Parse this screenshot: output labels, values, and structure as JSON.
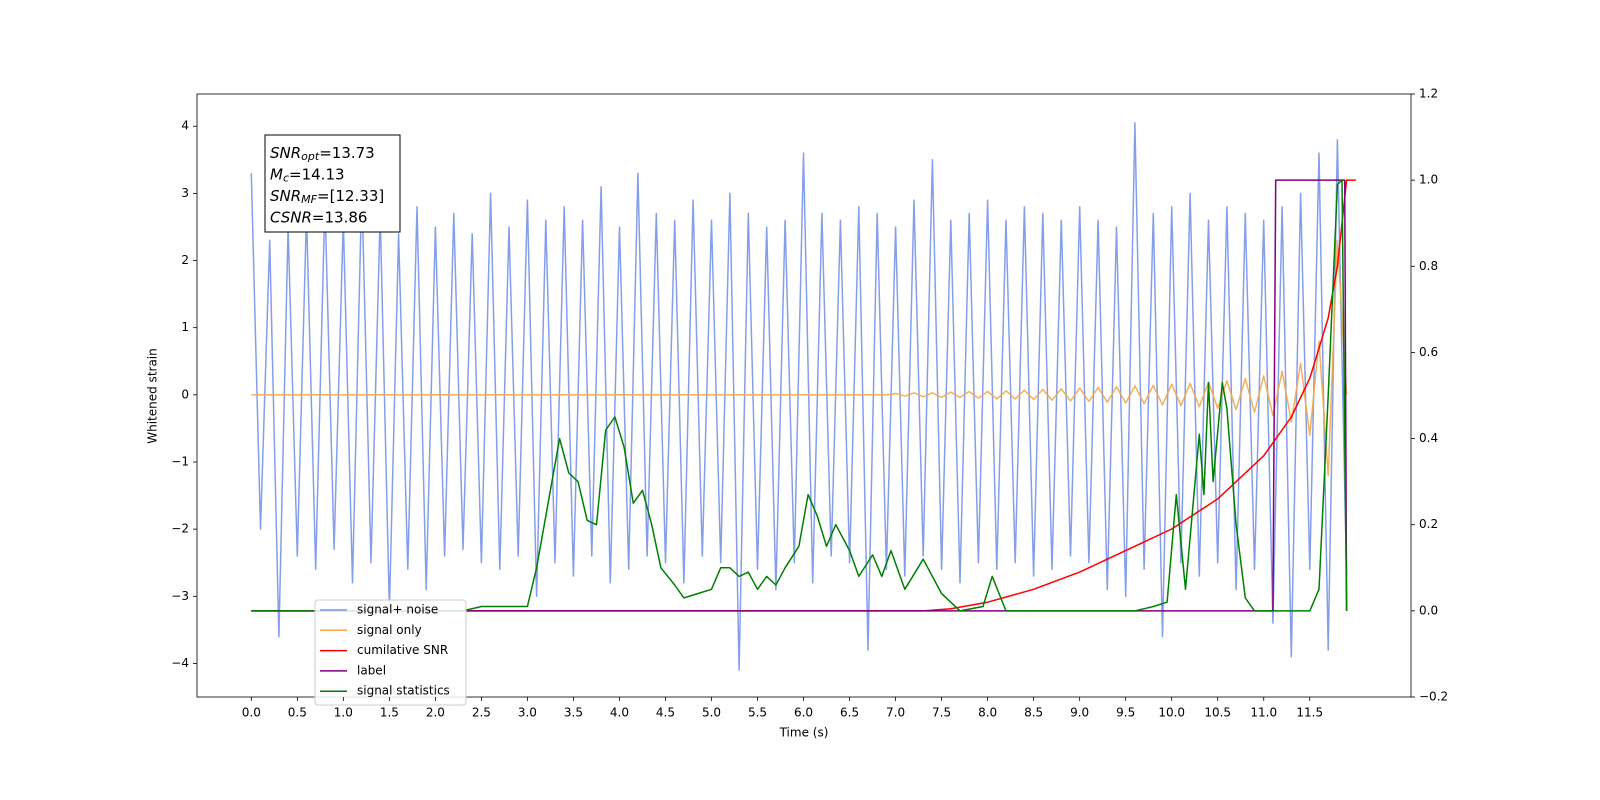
{
  "chart_data": {
    "type": "line",
    "xlabel": "Time (s)",
    "ylabel": "Whitened strain",
    "annotation": [
      {
        "base": "SNR",
        "sub": "opt",
        "rest": "=13.73"
      },
      {
        "base": "M",
        "sub": "c",
        "rest": "=14.13"
      },
      {
        "base": "SNR",
        "sub": "MF",
        "rest": "=[12.33]"
      },
      {
        "base": "CSNR",
        "sub": null,
        "rest": "=13.86"
      }
    ],
    "legend": "lower left",
    "xlim": [
      -0.59,
      12.6
    ],
    "xticks": [
      {
        "value": 0,
        "label": "0.0"
      },
      0.5,
      {
        "value": 1,
        "label": "1.0"
      },
      1.5,
      {
        "value": 2,
        "label": "2.0"
      },
      2.5,
      {
        "value": 3,
        "label": "3.0"
      },
      3.5,
      {
        "value": 4,
        "label": "4.0"
      },
      4.5,
      {
        "value": 5,
        "label": "5.0"
      },
      5.5,
      {
        "value": 6,
        "label": "6.0"
      },
      6.5,
      {
        "value": 7,
        "label": "7.0"
      },
      7.5,
      {
        "value": 8,
        "label": "8.0"
      },
      8.5,
      {
        "value": 9,
        "label": "9.0"
      },
      9.5,
      {
        "value": 10,
        "label": "10.0"
      },
      10.5,
      {
        "value": 11,
        "label": "11.0"
      },
      11.5
    ],
    "ylim": [
      -4.5,
      4.48
    ],
    "yticks": [
      {
        "value": -4,
        "label": "−4"
      },
      {
        "value": -3,
        "label": "−3"
      },
      {
        "value": -2,
        "label": "−2"
      },
      {
        "value": -1,
        "label": "−1"
      },
      0,
      1,
      2,
      3,
      4
    ],
    "y2lim": [
      -0.2,
      1.2
    ],
    "y2ticks": [
      {
        "value": -0.2,
        "label": "−0.2"
      },
      {
        "value": 0,
        "label": "0.0"
      },
      0.2,
      0.4,
      0.6,
      0.8,
      {
        "value": 1,
        "label": "1.0"
      },
      1.2
    ],
    "x": [
      0,
      0.1,
      0.2,
      0.3,
      0.4,
      0.5,
      0.6,
      0.7,
      0.8,
      0.9,
      1,
      1.1,
      1.2,
      1.3,
      1.4,
      1.5,
      1.6,
      1.7,
      1.8,
      1.9,
      2,
      2.1,
      2.2,
      2.3,
      2.4,
      2.5,
      2.6,
      2.7,
      2.8,
      2.9,
      3,
      3.1,
      3.2,
      3.3,
      3.4,
      3.5,
      3.6,
      3.7,
      3.8,
      3.9,
      4,
      4.1,
      4.2,
      4.3,
      4.4,
      4.5,
      4.6,
      4.7,
      4.8,
      4.9,
      5,
      5.1,
      5.2,
      5.3,
      5.4,
      5.5,
      5.6,
      5.7,
      5.8,
      5.9,
      6,
      6.1,
      6.2,
      6.3,
      6.4,
      6.5,
      6.6,
      6.7,
      6.8,
      6.9,
      7,
      7.1,
      7.2,
      7.3,
      7.4,
      7.5,
      7.6,
      7.7,
      7.8,
      7.9,
      8,
      8.1,
      8.2,
      8.3,
      8.4,
      8.5,
      8.6,
      8.7,
      8.8,
      8.9,
      9,
      9.1,
      9.2,
      9.3,
      9.4,
      9.5,
      9.6,
      9.7,
      9.8,
      9.9,
      10,
      10.1,
      10.2,
      10.3,
      10.4,
      10.5,
      10.6,
      10.7,
      10.8,
      10.9,
      11,
      11.1,
      11.2,
      11.3,
      11.4,
      11.5,
      11.6,
      11.7,
      11.8,
      11.9
    ],
    "series": [
      {
        "name": "signal+ noise",
        "color": "#7893e8",
        "values": [
          3.3,
          -2.0,
          2.3,
          -3.6,
          2.5,
          -2.4,
          2.7,
          -2.6,
          2.9,
          -2.3,
          2.6,
          -2.8,
          3.1,
          -2.5,
          2.7,
          -3.2,
          2.4,
          -2.6,
          2.8,
          -2.9,
          2.5,
          -2.4,
          2.7,
          -2.3,
          2.4,
          -2.5,
          3.0,
          -2.6,
          2.5,
          -2.4,
          2.9,
          -3.0,
          2.6,
          -2.5,
          2.8,
          -2.7,
          2.6,
          -2.4,
          3.1,
          -2.8,
          2.5,
          -2.6,
          3.3,
          -2.4,
          2.7,
          -2.5,
          2.6,
          -2.8,
          2.9,
          -2.4,
          2.6,
          -2.5,
          3.0,
          -4.1,
          2.7,
          -2.6,
          2.5,
          -2.9,
          2.6,
          -2.5,
          3.6,
          -2.8,
          2.7,
          -2.4,
          2.6,
          -2.5,
          2.8,
          -3.8,
          2.7,
          -2.6,
          2.5,
          -2.7,
          2.9,
          -2.4,
          3.5,
          -2.6,
          2.6,
          -2.8,
          2.7,
          -2.5,
          2.9,
          -2.6,
          2.6,
          -2.5,
          2.8,
          -2.7,
          2.7,
          -2.6,
          2.6,
          -2.4,
          2.8,
          -2.5,
          2.6,
          -2.9,
          2.5,
          -3.0,
          4.05,
          -2.6,
          2.7,
          -3.6,
          2.8,
          -2.5,
          3.0,
          -2.7,
          2.6,
          -2.5,
          2.8,
          -2.9,
          2.7,
          -2.6,
          2.6,
          -3.4,
          2.8,
          -3.9,
          3.0,
          -2.6,
          3.6,
          -3.8,
          3.8,
          -2.7
        ]
      },
      {
        "name": "signal only",
        "color": "#f2a94a",
        "values": [
          0,
          0,
          0,
          0,
          0,
          0,
          0,
          0,
          0,
          0,
          0,
          0,
          0,
          0,
          0,
          0,
          0,
          0,
          0,
          0,
          0,
          0,
          0,
          0,
          0,
          0,
          0,
          0,
          0,
          0,
          0,
          0,
          0,
          0,
          0,
          0,
          0,
          0,
          0,
          0,
          0,
          0,
          0,
          0,
          0,
          0,
          0,
          0,
          0,
          0,
          0,
          0,
          0,
          0,
          0,
          0,
          0,
          0,
          0,
          0,
          0,
          0,
          0,
          0,
          0,
          0,
          0,
          0,
          0,
          0,
          0.02,
          -0.02,
          0.03,
          -0.03,
          0.03,
          -0.04,
          0.04,
          -0.04,
          0.05,
          -0.05,
          0.05,
          -0.06,
          0.06,
          -0.06,
          0.07,
          -0.07,
          0.08,
          -0.08,
          0.09,
          -0.09,
          0.1,
          -0.1,
          0.11,
          -0.11,
          0.12,
          -0.12,
          0.13,
          -0.13,
          0.14,
          -0.15,
          0.16,
          -0.16,
          0.17,
          -0.18,
          0.19,
          -0.2,
          0.21,
          -0.22,
          0.24,
          -0.26,
          0.28,
          -0.31,
          0.35,
          -0.4,
          0.47,
          -0.6,
          0.8,
          -1.2,
          2.3,
          0
        ]
      },
      {
        "name": "cumilative SNR",
        "color": "red",
        "axis": "y2",
        "x": [
          0,
          7.3,
          7.6,
          8.0,
          8.5,
          9.0,
          9.5,
          10.0,
          10.5,
          11.0,
          11.3,
          11.5,
          11.7,
          11.8,
          11.85,
          11.9,
          12.0
        ],
        "values": [
          0,
          0,
          0.005,
          0.02,
          0.05,
          0.09,
          0.14,
          0.19,
          0.26,
          0.36,
          0.45,
          0.54,
          0.68,
          0.8,
          0.9,
          1.0,
          1.0
        ]
      },
      {
        "name": "label",
        "color": "purple",
        "axis": "y2",
        "x": [
          0,
          11.1,
          11.13,
          11.88,
          11.9
        ],
        "values": [
          0,
          0,
          1,
          1,
          0
        ]
      },
      {
        "name": "signal statistics",
        "color": "green",
        "axis": "y2",
        "x": [
          0,
          2.3,
          2.5,
          3.0,
          3.1,
          3.2,
          3.35,
          3.45,
          3.55,
          3.65,
          3.75,
          3.85,
          3.95,
          4.05,
          4.15,
          4.25,
          4.35,
          4.45,
          4.6,
          4.7,
          4.85,
          5.0,
          5.1,
          5.2,
          5.3,
          5.4,
          5.5,
          5.6,
          5.7,
          5.8,
          5.95,
          6.05,
          6.15,
          6.25,
          6.35,
          6.5,
          6.6,
          6.75,
          6.85,
          6.95,
          7.1,
          7.3,
          7.5,
          7.7,
          7.95,
          8.05,
          8.2,
          9.6,
          9.8,
          9.95,
          10.05,
          10.15,
          10.3,
          10.35,
          10.4,
          10.45,
          10.55,
          10.6,
          10.7,
          10.8,
          10.9,
          11.5,
          11.6,
          11.7,
          11.8,
          11.85,
          11.9
        ],
        "values": [
          0,
          0,
          0.01,
          0.01,
          0.1,
          0.22,
          0.4,
          0.32,
          0.3,
          0.21,
          0.2,
          0.42,
          0.45,
          0.38,
          0.25,
          0.28,
          0.2,
          0.1,
          0.06,
          0.03,
          0.04,
          0.05,
          0.1,
          0.1,
          0.08,
          0.09,
          0.05,
          0.08,
          0.06,
          0.1,
          0.15,
          0.27,
          0.22,
          0.15,
          0.2,
          0.14,
          0.08,
          0.13,
          0.08,
          0.14,
          0.05,
          0.12,
          0.04,
          0,
          0.01,
          0.08,
          0,
          0,
          0.01,
          0.02,
          0.27,
          0.05,
          0.41,
          0.27,
          0.53,
          0.3,
          0.53,
          0.47,
          0.2,
          0.03,
          0,
          0,
          0.05,
          0.5,
          0.99,
          1,
          0
        ]
      }
    ]
  }
}
